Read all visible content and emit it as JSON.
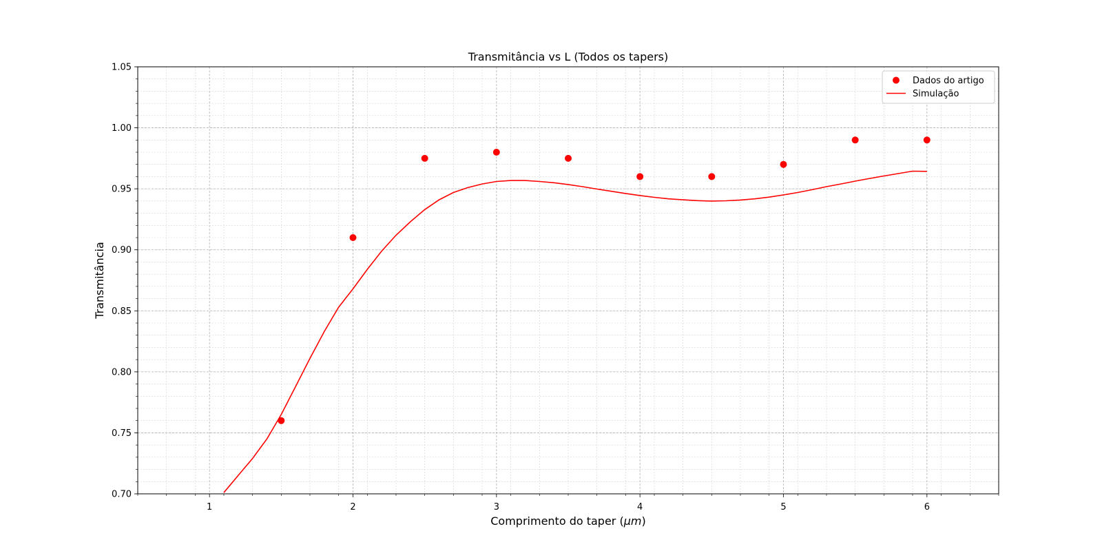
{
  "chart_data": {
    "type": "scatter",
    "title": "Transmitância vs L (Todos os tapers)",
    "xlabel": "Comprimento do taper (",
    "xlabel_math": "μm",
    "xlabel_suffix": ")",
    "ylabel": "Transmitância",
    "xlim": [
      0.5,
      6.5
    ],
    "ylim": [
      0.7,
      1.05
    ],
    "xticks": [
      1,
      2,
      3,
      4,
      5,
      6
    ],
    "xtick_labels": [
      "1",
      "2",
      "3",
      "4",
      "5",
      "6"
    ],
    "yticks": [
      0.7,
      0.75,
      0.8,
      0.85,
      0.9,
      0.95,
      1.0,
      1.05
    ],
    "ytick_labels": [
      "0.70",
      "0.75",
      "0.80",
      "0.85",
      "0.90",
      "0.95",
      "1.00",
      "1.05"
    ],
    "grid": true,
    "minor_grid": true,
    "legend_position": "top-right",
    "series": [
      {
        "name": "Dados do artigo",
        "kind": "scatter",
        "color": "#ff0000",
        "x": [
          1.5,
          2.0,
          2.5,
          3.0,
          3.5,
          4.0,
          4.5,
          5.0,
          5.5,
          6.0
        ],
        "y": [
          0.76,
          0.91,
          0.975,
          0.98,
          0.975,
          0.96,
          0.96,
          0.97,
          0.99,
          0.99
        ]
      },
      {
        "name": "Simulação",
        "kind": "line",
        "color": "#ff0000",
        "x": [
          1.1,
          1.2,
          1.3,
          1.4,
          1.5,
          1.6,
          1.7,
          1.8,
          1.9,
          2.0,
          2.1,
          2.2,
          2.3,
          2.4,
          2.5,
          2.6,
          2.7,
          2.8,
          2.9,
          3.0,
          3.1,
          3.2,
          3.3,
          3.4,
          3.5,
          3.6,
          3.7,
          3.8,
          3.9,
          4.0,
          4.1,
          4.2,
          4.3,
          4.4,
          4.5,
          4.6,
          4.7,
          4.8,
          4.9,
          5.0,
          5.1,
          5.2,
          5.3,
          5.4,
          5.5,
          5.6,
          5.7,
          5.8,
          5.9,
          6.0
        ],
        "y": [
          0.701,
          0.715,
          0.729,
          0.745,
          0.765,
          0.788,
          0.811,
          0.833,
          0.853,
          0.868,
          0.884,
          0.899,
          0.912,
          0.923,
          0.933,
          0.941,
          0.947,
          0.951,
          0.954,
          0.956,
          0.9568,
          0.9568,
          0.956,
          0.955,
          0.9535,
          0.9518,
          0.9498,
          0.948,
          0.9462,
          0.9445,
          0.943,
          0.9418,
          0.941,
          0.9403,
          0.94,
          0.9402,
          0.9408,
          0.9418,
          0.9432,
          0.945,
          0.947,
          0.9493,
          0.9518,
          0.954,
          0.9563,
          0.9585,
          0.9605,
          0.9625,
          0.9645,
          0.9643
        ]
      }
    ]
  }
}
